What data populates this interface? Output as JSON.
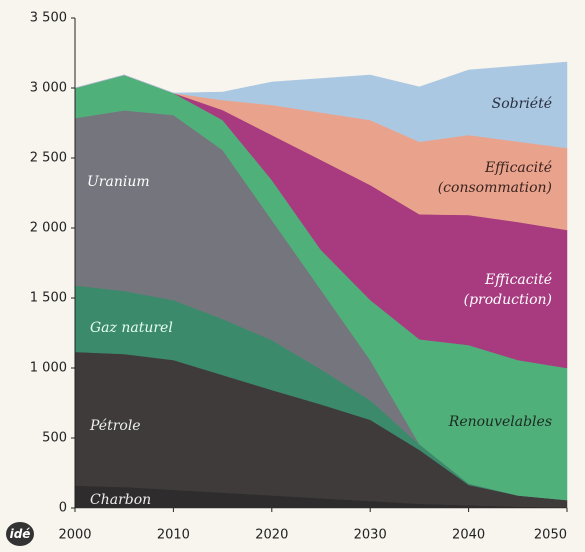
{
  "chart_data": {
    "type": "stacked_area",
    "logo": "idé",
    "x": [
      2000,
      2005,
      2010,
      2015,
      2020,
      2025,
      2030,
      2035,
      2040,
      2045,
      2050
    ],
    "xlim": [
      2000,
      2050
    ],
    "xticks": [
      2000,
      2010,
      2020,
      2030,
      2040,
      2050
    ],
    "ylim": [
      0,
      3500
    ],
    "yticks": [
      0,
      500,
      {
        "value": 1000,
        "label": "1 000"
      },
      {
        "value": 1500,
        "label": "1 500"
      },
      {
        "value": 2000,
        "label": "2 000"
      },
      {
        "value": 2500,
        "label": "2 500"
      },
      {
        "value": 3000,
        "label": "3 000"
      },
      {
        "value": 3500,
        "label": "3 500"
      }
    ],
    "series": [
      {
        "name": "Charbon",
        "color": "#2e2c2c",
        "values": [
          160,
          150,
          130,
          110,
          90,
          70,
          50,
          30,
          20,
          10,
          5
        ]
      },
      {
        "name": "Pétrole",
        "color": "#3f3b3b",
        "values": [
          955,
          950,
          927,
          840,
          753,
          670,
          580,
          385,
          145,
          80,
          52
        ]
      },
      {
        "name": "Gaz naturel",
        "color": "#3b8a6b",
        "values": [
          475,
          450,
          428,
          400,
          357,
          250,
          140,
          40,
          10,
          0,
          0
        ]
      },
      {
        "name": "Uranium",
        "color": "#75767d",
        "values": [
          1195,
          1290,
          1322,
          1207,
          857,
          567,
          287,
          0,
          0,
          0,
          0
        ]
      },
      {
        "name": "Renouvelables",
        "color": "#4fb07a",
        "values": [
          215,
          253,
          157,
          214,
          286,
          286,
          429,
          750,
          989,
          967,
          943
        ]
      },
      {
        "name": "Efficacité (production)",
        "color": "#a83a80",
        "values": [
          0,
          0,
          0,
          72,
          321,
          643,
          821,
          893,
          929,
          986,
          986
        ]
      },
      {
        "name": "Efficacité (consommation)",
        "color": "#e9a38c",
        "values": [
          0,
          0,
          0,
          71,
          215,
          339,
          464,
          518,
          571,
          575,
          585
        ]
      },
      {
        "name": "Sobriété",
        "color": "#abc8e3",
        "values": [
          0,
          0,
          0,
          57,
          164,
          243,
          322,
          392,
          465,
          539,
          615
        ]
      }
    ]
  }
}
